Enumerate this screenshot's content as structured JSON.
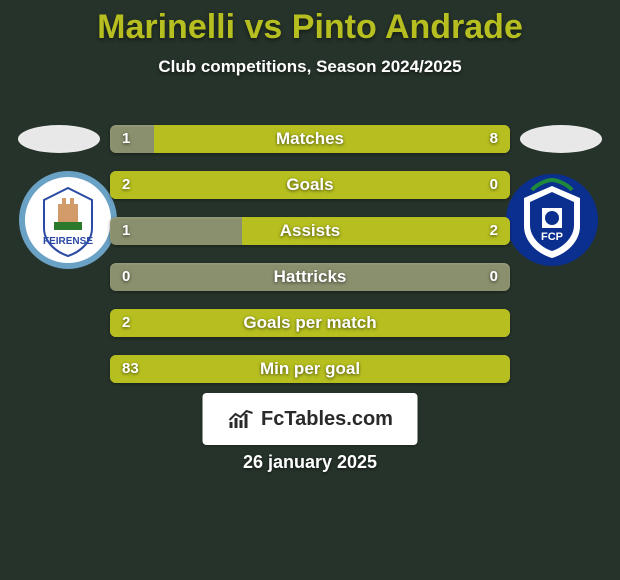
{
  "background_color": "#26332a",
  "title": {
    "text": "Marinelli vs Pinto Andrade",
    "color": "#b6bf1f",
    "fontsize": 34
  },
  "subtitle": {
    "text": "Club competitions, Season 2024/2025",
    "color": "#ffffff",
    "fontsize": 17
  },
  "palette": {
    "bar_win_color": "#b6bf1f",
    "bar_base_color": "#8a8f6d",
    "value_text_color": "#ffffff",
    "label_text_color": "#ffffff",
    "row_label_fontsize": 17,
    "row_value_fontsize": 15
  },
  "flags": {
    "left_bg": "#e8e8e8",
    "right_bg": "#e8e8e8"
  },
  "badges": {
    "left": {
      "ring_color": "#6aa2c5",
      "inner_bg": "#ffffff",
      "label": "FEIRENSE",
      "label_color": "#2b4aa3"
    },
    "right": {
      "primary_color": "#0a2f8f",
      "inner_bg": "#ffffff",
      "label": "FCP",
      "label_color": "#0a2f8f"
    }
  },
  "rows": [
    {
      "label": "Matches",
      "left": "1",
      "right": "8",
      "left_pct": 11,
      "right_pct": 89
    },
    {
      "label": "Goals",
      "left": "2",
      "right": "0",
      "left_pct": 100,
      "right_pct": 0
    },
    {
      "label": "Assists",
      "left": "1",
      "right": "2",
      "left_pct": 33,
      "right_pct": 67
    },
    {
      "label": "Hattricks",
      "left": "0",
      "right": "0",
      "left_pct": 0,
      "right_pct": 0
    },
    {
      "label": "Goals per match",
      "left": "2",
      "right": "",
      "left_pct": 100,
      "right_pct": 0
    },
    {
      "label": "Min per goal",
      "left": "83",
      "right": "",
      "left_pct": 100,
      "right_pct": 0
    }
  ],
  "branding": {
    "text": "FcTables.com",
    "bg": "#ffffff",
    "icon_color": "#2a2a2a",
    "text_color": "#2a2a2a",
    "fontsize": 20
  },
  "date": {
    "text": "26 january 2025",
    "color": "#ffffff",
    "fontsize": 18
  }
}
